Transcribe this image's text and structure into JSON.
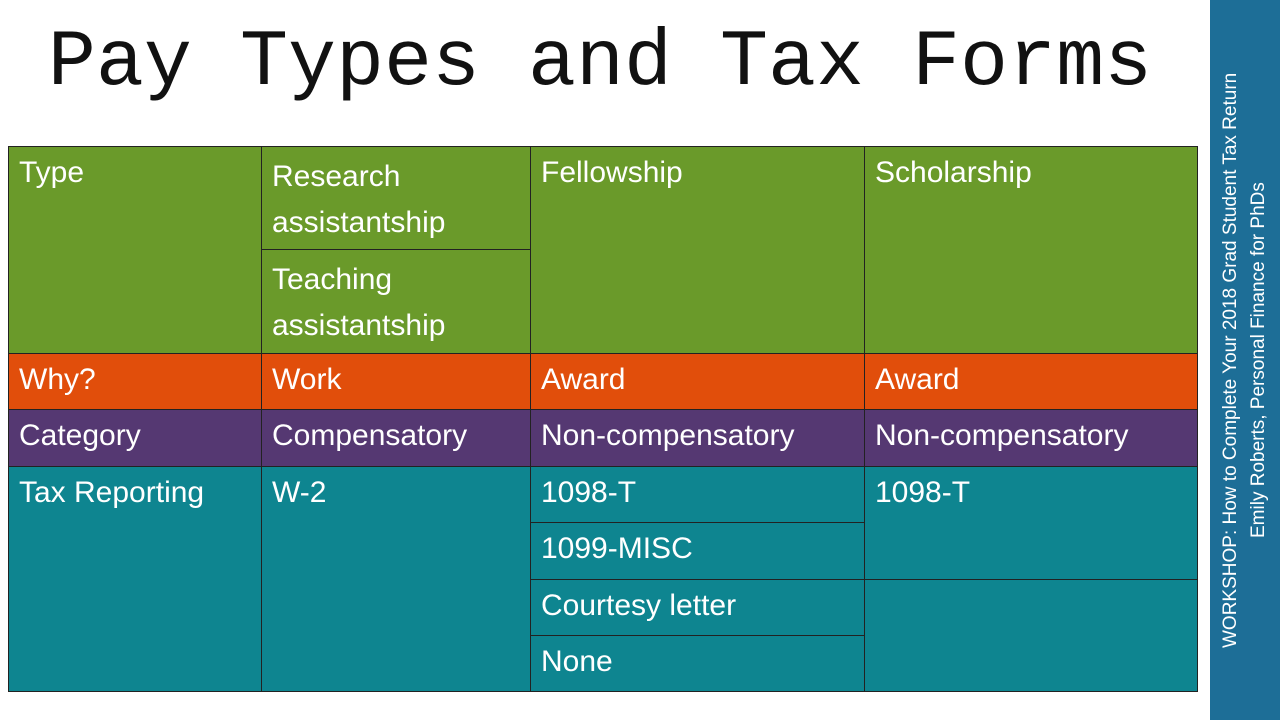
{
  "title": "Pay Types and Tax Forms",
  "sidebar": {
    "lines": [
      "WORKSHOP: How to Complete Your 2018 Grad Student Tax Return",
      "Emily Roberts, Personal Finance for PhDs"
    ]
  },
  "table": {
    "rows": [
      [
        "Type",
        [
          "Research assistantship",
          "Teaching assistantship"
        ],
        "Fellowship",
        "Scholarship"
      ],
      [
        "Why?",
        "Work",
        "Award",
        "Award"
      ],
      [
        "Category",
        "Compensatory",
        "Non-compensatory",
        "Non-compensatory"
      ],
      [
        "Tax Reporting",
        "W-2",
        [
          "1098-T",
          "1099-MISC",
          "Courtesy letter",
          "None"
        ],
        [
          "1098-T"
        ]
      ]
    ]
  }
}
